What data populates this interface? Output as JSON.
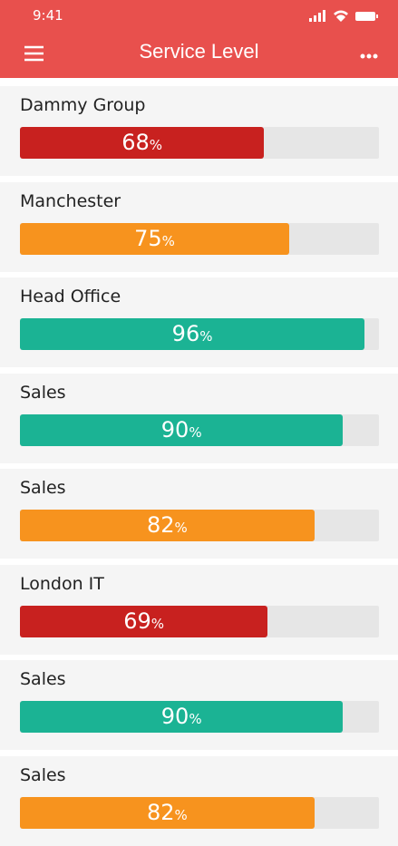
{
  "status_bar": {
    "time": "9:41"
  },
  "header": {
    "title": "Service Level"
  },
  "unit": "%",
  "items": [
    {
      "label": "Dammy Group",
      "value": 68,
      "color": "#c8211f"
    },
    {
      "label": "Manchester",
      "value": 75,
      "color": "#f7931e"
    },
    {
      "label": "Head Office",
      "value": 96,
      "color": "#1bb394"
    },
    {
      "label": "Sales",
      "value": 90,
      "color": "#1bb394"
    },
    {
      "label": "Sales",
      "value": 82,
      "color": "#f7931e"
    },
    {
      "label": "London IT",
      "value": 69,
      "color": "#c8211f"
    },
    {
      "label": "Sales",
      "value": 90,
      "color": "#1bb394"
    },
    {
      "label": "Sales",
      "value": 82,
      "color": "#f7931e"
    }
  ]
}
